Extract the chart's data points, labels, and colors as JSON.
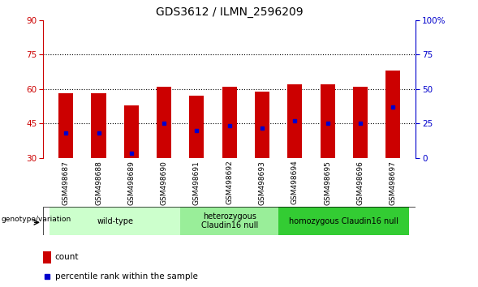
{
  "title": "GDS3612 / ILMN_2596209",
  "samples": [
    "GSM498687",
    "GSM498688",
    "GSM498689",
    "GSM498690",
    "GSM498691",
    "GSM498692",
    "GSM498693",
    "GSM498694",
    "GSM498695",
    "GSM498696",
    "GSM498697"
  ],
  "bar_base": 30,
  "count_tops": [
    58,
    58,
    53,
    61,
    57,
    61,
    59,
    62,
    62,
    61,
    68
  ],
  "percentile_values": [
    41,
    41,
    32,
    45,
    42,
    44,
    43,
    46,
    45,
    45,
    52
  ],
  "ylim_left": [
    30,
    90
  ],
  "ylim_right": [
    0,
    100
  ],
  "yticks_left": [
    30,
    45,
    60,
    75,
    90
  ],
  "yticks_right": [
    0,
    25,
    50,
    75,
    100
  ],
  "ytick_labels_right": [
    "0",
    "25",
    "50",
    "75",
    "100%"
  ],
  "bar_color": "#cc0000",
  "percentile_color": "#0000cc",
  "bar_width": 0.45,
  "groups": [
    {
      "label": "wild-type",
      "start": 0,
      "end": 3,
      "color": "#ccffcc"
    },
    {
      "label": "heterozygous\nClaudin16 null",
      "start": 4,
      "end": 6,
      "color": "#99ee99"
    },
    {
      "label": "homozygous Claudin16 null",
      "start": 7,
      "end": 10,
      "color": "#33cc33"
    }
  ],
  "group_label_prefix": "genotype/variation",
  "legend_count_label": "count",
  "legend_percentile_label": "percentile rank within the sample",
  "grid_yticks": [
    45,
    60,
    75
  ],
  "title_color": "#000000",
  "left_axis_color": "#cc0000",
  "right_axis_color": "#0000cc",
  "background_color": "#ffffff",
  "plot_bg": "#ffffff",
  "tick_area_bg": "#c8c8c8",
  "col_sep_color": "#ffffff"
}
